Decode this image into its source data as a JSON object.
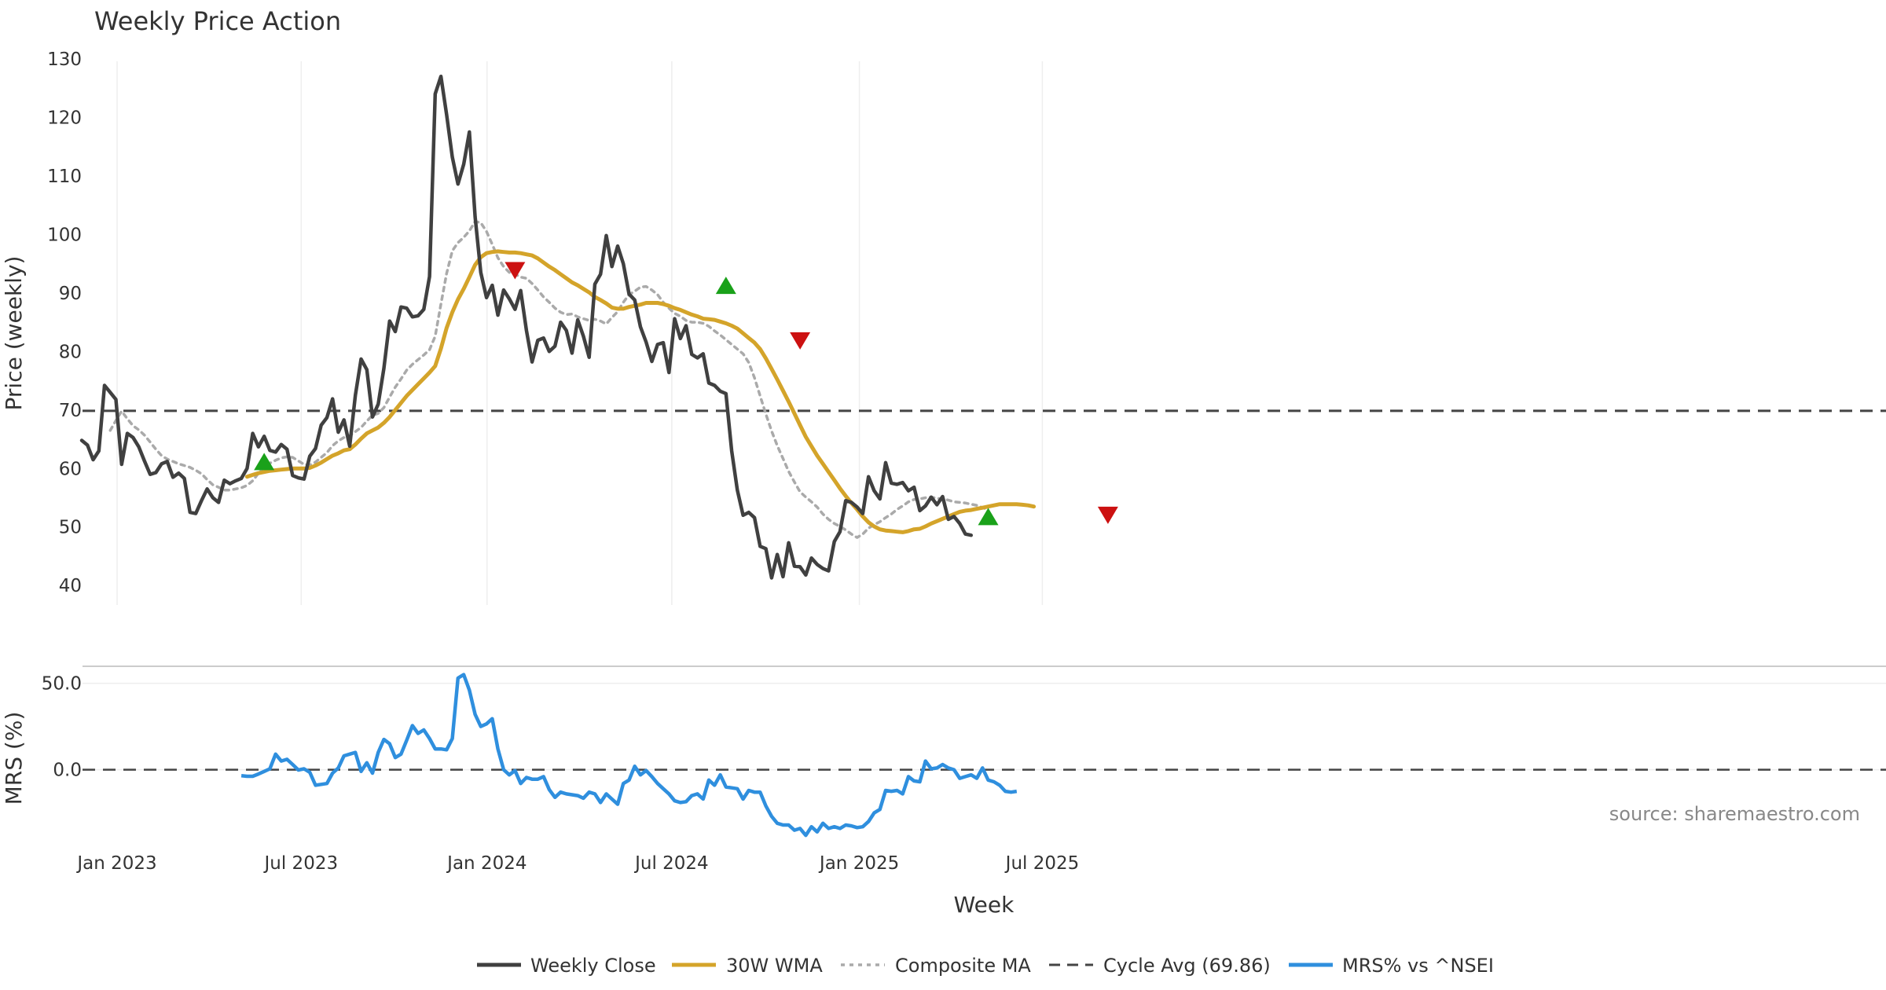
{
  "chart_data": {
    "type": "line",
    "title": "Weekly Price Action",
    "xlabel": "Week",
    "source": "source: sharemaestro.com",
    "x_ticks": [
      "Jan 2023",
      "Jul 2023",
      "Jan 2024",
      "Jul 2024",
      "Jan 2025",
      "Jul 2025"
    ],
    "price_panel": {
      "ylabel": "Price (weekly)",
      "ylim": [
        36,
        132
      ],
      "y_ticks": [
        "40",
        "50",
        "60",
        "70",
        "80",
        "90",
        "100",
        "110",
        "120",
        "130"
      ],
      "cycle_avg": 69.86,
      "series": [
        {
          "name": "Weekly Close",
          "color": "#404040",
          "start_week": 0,
          "values": [
            64.8,
            64,
            61.5,
            63,
            74.2,
            73,
            71.8,
            60.7,
            66,
            65.3,
            63.7,
            61.3,
            59,
            59.3,
            60.8,
            61.2,
            58.5,
            59.2,
            58.3,
            52.5,
            52.3,
            54.5,
            56.5,
            55,
            54.2,
            58,
            57.4,
            57.9,
            58.3,
            60,
            66,
            63.7,
            65.5,
            63.1,
            62.8,
            64.1,
            63.3,
            58.8,
            58.4,
            58.2,
            62.1,
            63.4,
            67.4,
            68.7,
            71.9,
            66.2,
            68.3,
            63.8,
            72.5,
            78.7,
            76.9,
            68.8,
            71,
            77.1,
            85.2,
            83.4,
            87.6,
            87.4,
            85.9,
            86.1,
            87.2,
            92.8,
            124,
            127,
            120.5,
            113.2,
            108.6,
            112,
            117.5,
            103,
            93.5,
            89.2,
            91.3,
            86.2,
            90.5,
            89,
            87.2,
            90.4,
            83.6,
            78.2,
            81.9,
            82.3,
            80,
            80.9,
            85,
            83.6,
            79.7,
            85.4,
            82.6,
            79,
            91.5,
            93.2,
            99.8,
            94.5,
            98,
            95,
            89.8,
            88.8,
            84.2,
            81.6,
            78.3,
            81.2,
            81.5,
            76.4,
            85.6,
            82.2,
            84.4,
            79.5,
            78.9,
            79.6,
            74.6,
            74.2,
            73.2,
            72.8,
            63,
            56.3,
            52,
            52.5,
            51.6,
            46.7,
            46.3,
            41.3,
            45.3,
            41.5,
            47.3,
            43.3,
            43.2,
            41.8,
            44.7,
            43.6,
            42.9,
            42.5,
            47.5,
            49.2,
            54.5,
            54.2,
            53.4,
            52.3,
            58.6,
            56.2,
            54.8,
            61,
            57.5,
            57.3,
            57.6,
            56.2,
            56.8,
            52.8,
            53.6,
            55.1,
            53.8,
            55.2,
            51.3,
            51.8,
            50.6,
            48.8,
            48.6
          ]
        },
        {
          "name": "30W WMA",
          "color": "#d4a42a",
          "start_week": 29,
          "values": [
            58.6,
            58.9,
            59.2,
            59.4,
            59.6,
            59.7,
            59.8,
            59.9,
            60,
            60,
            60,
            60.1,
            60.5,
            61,
            61.6,
            62.2,
            62.6,
            63.1,
            63.3,
            64.1,
            65.1,
            66,
            66.5,
            67,
            67.8,
            68.8,
            70,
            71.2,
            72.4,
            73.4,
            74.4,
            75.4,
            76.4,
            77.5,
            80.5,
            84,
            86.7,
            88.9,
            90.7,
            92.7,
            94.8,
            96.1,
            96.8,
            97,
            97.1,
            97,
            96.9,
            96.9,
            96.8,
            96.6,
            96.4,
            95.9,
            95.2,
            94.5,
            93.9,
            93.2,
            92.5,
            91.8,
            91.3,
            90.7,
            90.1,
            89.3,
            88.8,
            88.2,
            87.5,
            87.3,
            87.3,
            87.6,
            87.8,
            88,
            88.3,
            88.3,
            88.3,
            88.1,
            87.8,
            87.4,
            87.1,
            86.7,
            86.3,
            86,
            85.6,
            85.5,
            85.4,
            85.1,
            84.8,
            84.4,
            83.9,
            83.1,
            82.3,
            81.5,
            80.4,
            78.8,
            77,
            75.2,
            73.3,
            71.4,
            69.4,
            67.4,
            65.4,
            63.8,
            62.2,
            60.8,
            59.4,
            58,
            56.6,
            55.3,
            54.1,
            53,
            51.8,
            50.8,
            50.1,
            49.6,
            49.4,
            49.3,
            49.2,
            49.1,
            49.3,
            49.6,
            49.7,
            50.1,
            50.6,
            51,
            51.4,
            51.8,
            52.2,
            52.6,
            52.8,
            52.9,
            53.1,
            53.3,
            53.5,
            53.7,
            53.9,
            53.9,
            53.9,
            53.9,
            53.8,
            53.7,
            53.5
          ]
        },
        {
          "name": "Composite MA",
          "color": "#aaaaaa",
          "start_week": 5,
          "values": [
            66.5,
            68.2,
            69.8,
            68.5,
            67.3,
            66.6,
            65.7,
            64.5,
            63.3,
            62.2,
            61.6,
            61.2,
            60.8,
            60.5,
            60.2,
            59.7,
            59.1,
            58.1,
            57.2,
            56.8,
            56.3,
            56.3,
            56.5,
            56.7,
            57.1,
            57.9,
            59.2,
            60.2,
            60.9,
            61.4,
            61.8,
            62,
            61.9,
            61.3,
            60.7,
            60.6,
            61.1,
            61.9,
            62.7,
            63.9,
            64.7,
            65.3,
            65.6,
            66.3,
            67,
            68.1,
            69.1,
            69.4,
            70.4,
            72.2,
            73.9,
            75.3,
            76.8,
            77.8,
            78.6,
            79.4,
            80.3,
            82.6,
            88.1,
            93.3,
            97.2,
            98.6,
            99.5,
            100.6,
            102.2,
            102,
            100.5,
            98.3,
            96,
            94.5,
            93.5,
            93.2,
            92.7,
            92.5,
            91.6,
            90.5,
            89.3,
            88.4,
            87.4,
            86.7,
            86.3,
            86.4,
            85.9,
            85.6,
            85.3,
            85.5,
            85.2,
            84.7,
            85.8,
            86.8,
            88.4,
            89.7,
            90.3,
            91,
            91.1,
            90.5,
            89.7,
            88.4,
            87.4,
            86.5,
            86,
            85.3,
            85,
            85,
            84.8,
            84.3,
            83.5,
            82.8,
            82,
            81.2,
            80.4,
            79.6,
            78.1,
            75.5,
            72.4,
            69.3,
            66.4,
            63.9,
            61.7,
            59.5,
            57.7,
            56,
            55.1,
            54.3,
            53.4,
            52.2,
            51.3,
            50.6,
            50.1,
            49.5,
            48.8,
            48.2,
            48.8,
            49.8,
            50.4,
            50.9,
            51.6,
            52.2,
            53,
            53.6,
            54.3,
            54.7,
            54.8,
            55,
            55.1,
            54.9,
            54.8,
            54.6,
            54.3,
            54.2,
            54.1,
            53.9,
            53.7,
            53.3,
            53
          ]
        }
      ],
      "signals": [
        {
          "type": "buy",
          "week": 32,
          "price": 61.2
        },
        {
          "type": "sell",
          "week": 76,
          "price": 93.8
        },
        {
          "type": "buy",
          "week": 113,
          "price": 91.3
        },
        {
          "type": "sell",
          "week": 126,
          "price": 81.8
        },
        {
          "type": "buy",
          "week": 159,
          "price": 51.8
        },
        {
          "type": "sell",
          "week": 180,
          "price": 52
        }
      ]
    },
    "mrs_panel": {
      "ylabel": "MRS (%)",
      "ylim": [
        -42,
        58
      ],
      "y_ticks": [
        "0.0",
        "50.0"
      ],
      "series": [
        {
          "name": "MRS% vs ^NSEI",
          "color": "#2f8fde",
          "start_week": 28,
          "values": [
            -3.5,
            -3.8,
            -3.8,
            -2.5,
            -1,
            0.5,
            9,
            5,
            6,
            3,
            -0.2,
            0.5,
            -1.5,
            -9,
            -8.5,
            -8,
            -2,
            1,
            8,
            9,
            10,
            -1,
            4,
            -2,
            10,
            17.5,
            15,
            7,
            9,
            17,
            25.5,
            21,
            23,
            18,
            12,
            12,
            11.5,
            18,
            53,
            55,
            46,
            32,
            25,
            26.5,
            29.5,
            12,
            0,
            -3,
            -0.5,
            -8,
            -4.5,
            -5.5,
            -5.5,
            -4,
            -11.5,
            -16,
            -13,
            -14,
            -14.5,
            -15,
            -16.5,
            -13,
            -14,
            -19,
            -14,
            -17,
            -20,
            -8,
            -6,
            2,
            -3,
            -0.5,
            -4,
            -8,
            -11,
            -14,
            -18,
            -19,
            -18.5,
            -15,
            -14,
            -17,
            -6,
            -9,
            -3,
            -10,
            -10.5,
            -11,
            -17,
            -12,
            -13,
            -13,
            -21,
            -27,
            -31,
            -32,
            -32,
            -35,
            -34,
            -38,
            -33,
            -36,
            -31,
            -34,
            -33,
            -34,
            -32,
            -32.5,
            -33.5,
            -33,
            -30,
            -25,
            -23,
            -12,
            -12.5,
            -12,
            -14,
            -4,
            -6.5,
            -7,
            5,
            0.5,
            1,
            3,
            1,
            0,
            -5,
            -4,
            -3,
            -5,
            1,
            -6,
            -7,
            -9,
            -12.5,
            -13,
            -12.5
          ]
        }
      ]
    },
    "legend": {
      "entries": [
        "Weekly Close",
        "30W WMA",
        "Composite MA",
        "Cycle Avg (69.86)",
        "MRS% vs ^NSEI"
      ],
      "placement": "bottom-center"
    }
  }
}
